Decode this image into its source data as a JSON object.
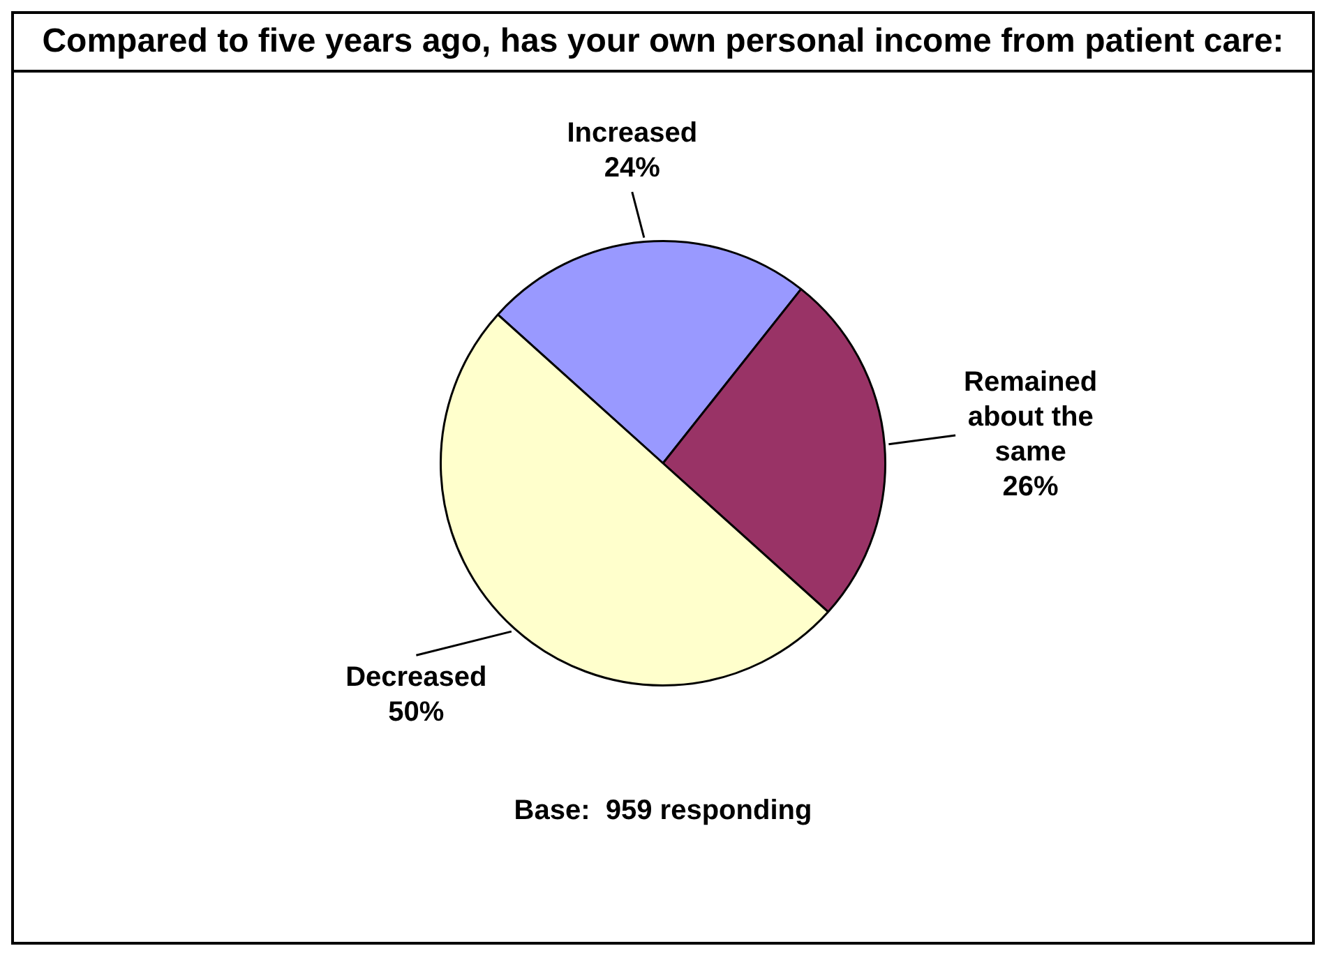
{
  "chart_data": {
    "type": "pie",
    "title": "Compared to five years ago, has your own personal income from patient care:",
    "categories": [
      "Increased",
      "Remained about the same",
      "Decreased"
    ],
    "values": [
      24,
      26,
      50
    ],
    "value_labels": [
      "24%",
      "26%",
      "50%"
    ],
    "colors": [
      "#9999ff",
      "#993366",
      "#ffffcc"
    ],
    "legend": false,
    "annotations": [
      "Base:  959 responding"
    ]
  }
}
